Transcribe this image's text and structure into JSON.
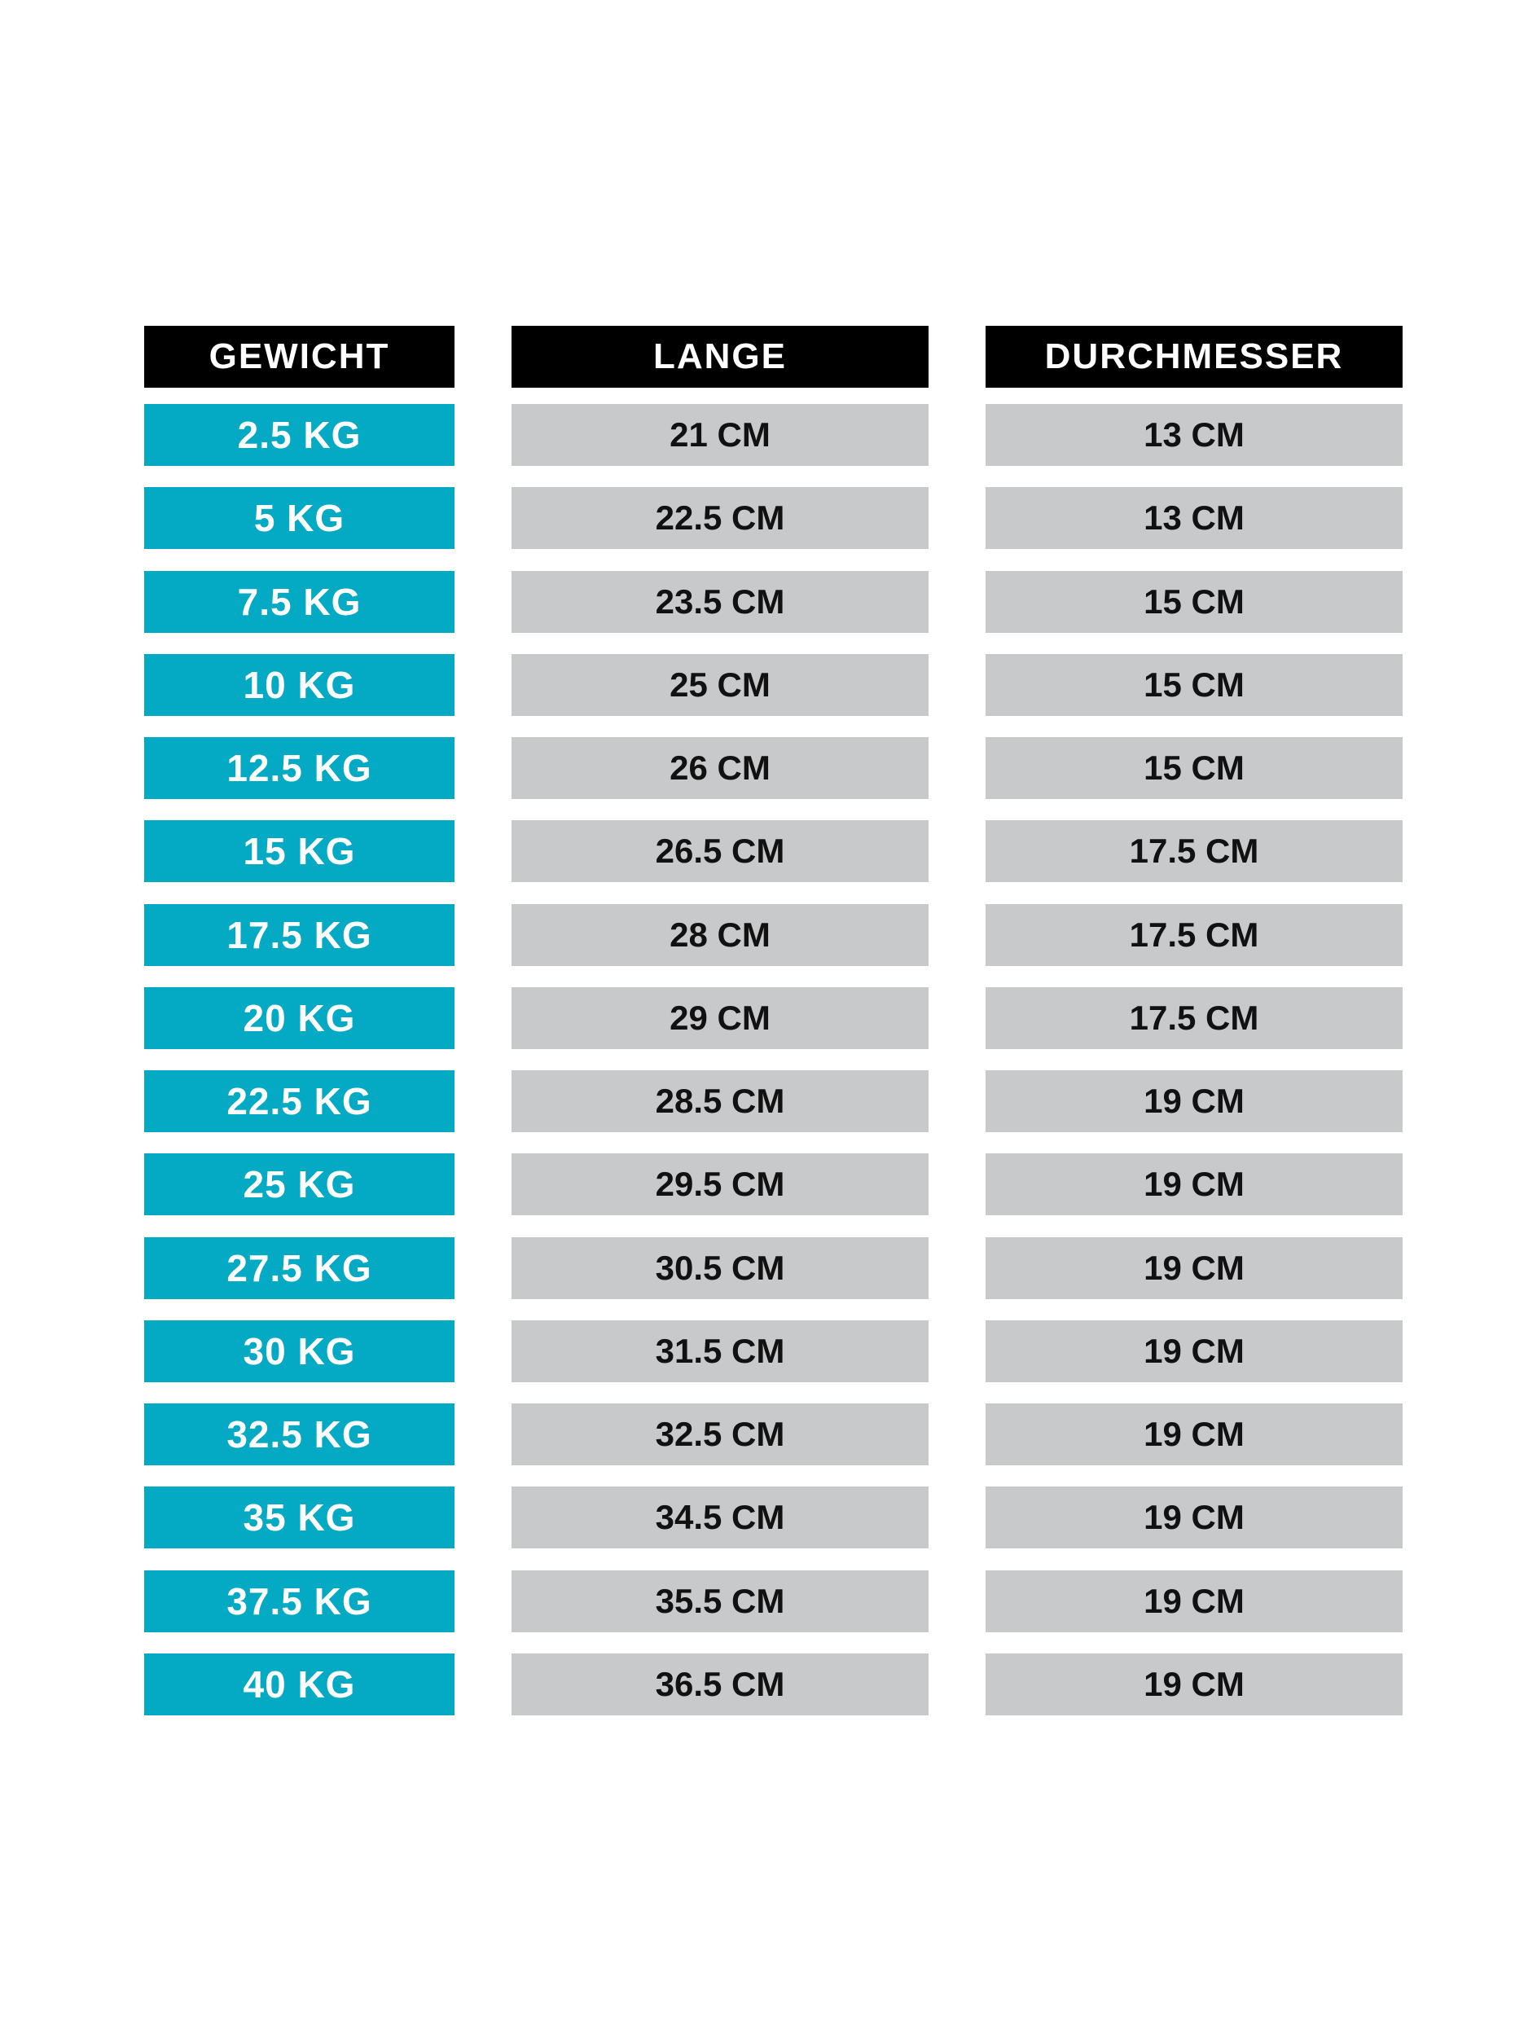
{
  "colors": {
    "header_bg": "#000000",
    "weight_bg": "#04aac4",
    "value_bg": "#c8c9cb"
  },
  "headers": [
    "GEWICHT",
    "LANGE",
    "DURCHMESSER"
  ],
  "rows": [
    {
      "weight": "2.5 KG",
      "length": "21 CM",
      "diameter": "13 CM"
    },
    {
      "weight": "5 KG",
      "length": "22.5 CM",
      "diameter": "13 CM"
    },
    {
      "weight": "7.5 KG",
      "length": "23.5 CM",
      "diameter": "15 CM"
    },
    {
      "weight": "10 KG",
      "length": "25 CM",
      "diameter": "15 CM"
    },
    {
      "weight": "12.5 KG",
      "length": "26 CM",
      "diameter": "15 CM"
    },
    {
      "weight": "15 KG",
      "length": "26.5 CM",
      "diameter": "17.5 CM"
    },
    {
      "weight": "17.5 KG",
      "length": "28 CM",
      "diameter": "17.5 CM"
    },
    {
      "weight": "20 KG",
      "length": "29 CM",
      "diameter": "17.5 CM"
    },
    {
      "weight": "22.5 KG",
      "length": "28.5 CM",
      "diameter": "19 CM"
    },
    {
      "weight": "25 KG",
      "length": "29.5 CM",
      "diameter": "19 CM"
    },
    {
      "weight": "27.5 KG",
      "length": "30.5 CM",
      "diameter": "19 CM"
    },
    {
      "weight": "30 KG",
      "length": "31.5 CM",
      "diameter": "19 CM"
    },
    {
      "weight": "32.5 KG",
      "length": "32.5 CM",
      "diameter": "19 CM"
    },
    {
      "weight": "35 KG",
      "length": "34.5 CM",
      "diameter": "19 CM"
    },
    {
      "weight": "37.5 KG",
      "length": "35.5 CM",
      "diameter": "19 CM"
    },
    {
      "weight": "40 KG",
      "length": "36.5 CM",
      "diameter": "19 CM"
    }
  ]
}
